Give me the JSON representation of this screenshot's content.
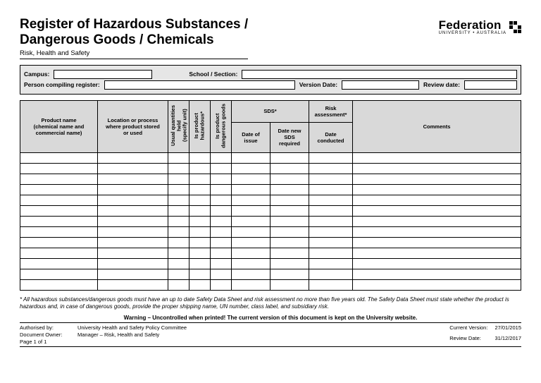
{
  "title_line1": "Register of Hazardous Substances /",
  "title_line2": "Dangerous Goods / Chemicals",
  "subtitle": "Risk, Health and Safety",
  "logo": {
    "name": "Federation",
    "sub": "UNIVERSITY • AUSTRALIA"
  },
  "meta": {
    "campus_label": "Campus:",
    "school_label": "School / Section:",
    "person_label": "Person compiling register:",
    "version_label": "Version Date:",
    "review_label": "Review date:"
  },
  "columns": {
    "product": "Product name\n(chemical name and\ncommercial name)",
    "location": "Location or process\nwhere product stored\nor used",
    "qty": "Usual quantities\nheld\n(specify unit)",
    "hazardous": "Is product\nhazardous*",
    "dangerous": "Is product\ndangerous goods",
    "sds_group": "SDS*",
    "sds_issue": "Date of\nissue",
    "sds_new": "Date new\nSDS\nrequired",
    "risk_group": "Risk\nassessment*",
    "risk_date": "Date\nconducted",
    "comments": "Comments"
  },
  "row_count": 13,
  "footnote": "* All hazardous substances/dangerous goods must have an up to date Safety Data Sheet and risk assessment no more than five years old.  The Safety Data Sheet must state whether the product is hazardous and, in case of dangerous goods, provide the proper shipping name, UN number, class label, and subsidiary risk.",
  "warning": "Warning – Uncontrolled when printed!  The current version of this document is kept on the University website.",
  "footer": {
    "auth_by_label": "Authorised by:",
    "auth_by": "University Health and Safety Policy Committee",
    "owner_label": "Document Owner:",
    "owner": "Manager – Risk, Health and Safety",
    "page_label": "Page 1 of 1",
    "cur_ver_label": "Current Version:",
    "cur_ver": "27/01/2015",
    "rev_label": "Review Date:",
    "rev": "31/12/2017"
  }
}
